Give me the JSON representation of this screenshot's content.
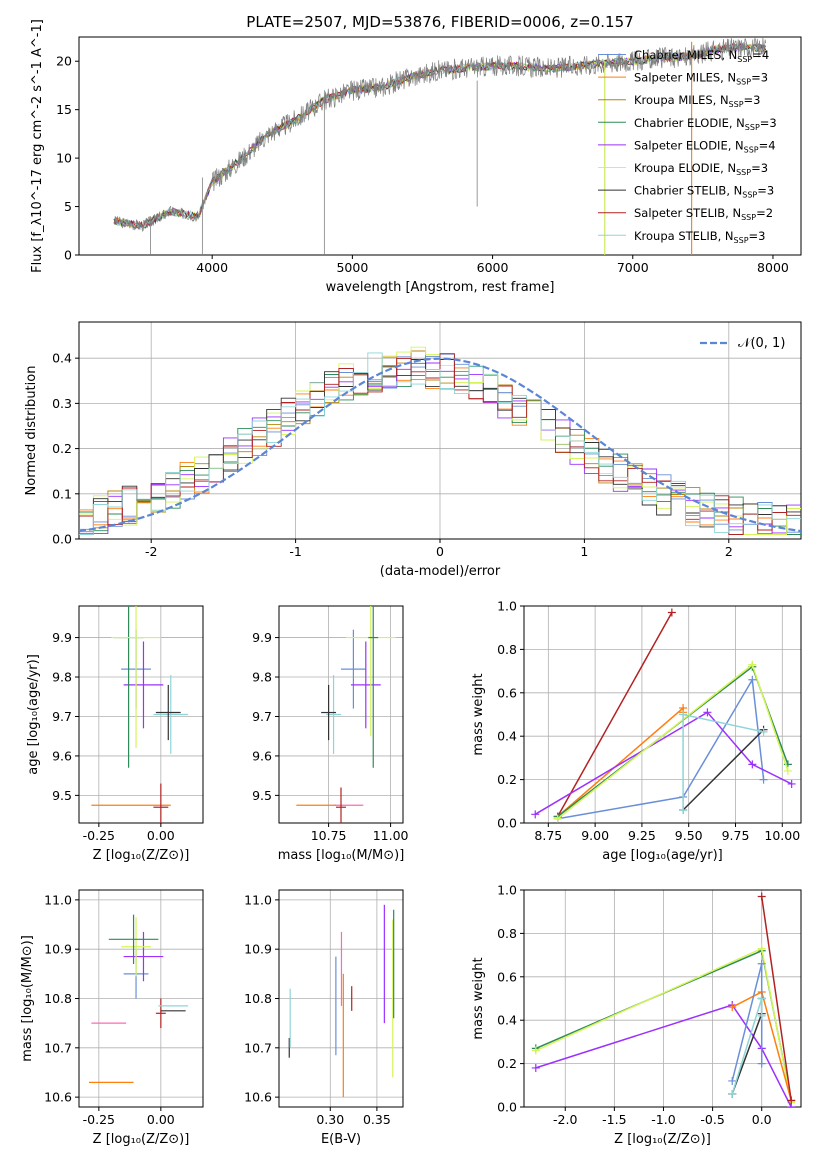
{
  "series_colors": {
    "Chabrier MILES": "#6a8fd8",
    "Salpeter MILES": "#ff7f0e",
    "Kroupa MILES": "#b8860b",
    "Chabrier ELODIE": "#2e8b57",
    "Salpeter ELODIE": "#9b30ff",
    "Kroupa ELODIE": "#d4f55a",
    "Chabrier STELIB": "#333333",
    "Salpeter STELIB": "#b22222",
    "Kroupa STELIB": "#8fd5d8",
    "pink": "#ff69b4",
    "gauss": "#5b86d6"
  },
  "chart_data": [
    {
      "id": "spectrum",
      "type": "line",
      "title": "PLATE=2507, MJD=53876, FIBERID=0006, z=0.157",
      "xlabel": "wavelength [Angstrom, rest frame]",
      "ylabel": "Flux [f_λ10^-17 erg cm^-2 s^-1 A^-1]",
      "xlim": [
        3050,
        8200
      ],
      "ylim": [
        0,
        22.5
      ],
      "xticks": [
        4000,
        5000,
        6000,
        7000,
        8000
      ],
      "yticks": [
        0,
        5,
        10,
        15,
        20
      ],
      "legend_position": "upper right",
      "legend": [
        {
          "name": "Chabrier MILES",
          "nssp": "4"
        },
        {
          "name": "Salpeter MILES",
          "nssp": "3"
        },
        {
          "name": "Kroupa MILES",
          "nssp": "3"
        },
        {
          "name": "Chabrier ELODIE",
          "nssp": "3"
        },
        {
          "name": "Salpeter ELODIE",
          "nssp": "4"
        },
        {
          "name": "Kroupa ELODIE",
          "nssp": "3"
        },
        {
          "name": "Chabrier STELIB",
          "nssp": "3"
        },
        {
          "name": "Salpeter STELIB",
          "nssp": "2"
        },
        {
          "name": "Kroupa STELIB",
          "nssp": "3"
        }
      ],
      "data_series": "observed",
      "x": [
        3300,
        3500,
        3700,
        3900,
        4000,
        4200,
        4400,
        4600,
        4800,
        5000,
        5200,
        5400,
        5600,
        5800,
        6000,
        6200,
        6400,
        6600,
        6800,
        7000,
        7200,
        7400,
        7600,
        7800,
        7950
      ],
      "y": [
        3.5,
        3.0,
        4.5,
        4.0,
        7.5,
        9.8,
        12.5,
        14.0,
        16.0,
        17.0,
        17.3,
        18.3,
        19.0,
        19.3,
        19.5,
        19.5,
        19.2,
        19.5,
        19.8,
        20.0,
        20.3,
        20.5,
        21.2,
        21.5,
        21.3
      ]
    },
    {
      "id": "residuals",
      "type": "histogram",
      "xlabel": "(data-model)/error",
      "ylabel": "Normed distribution",
      "xlim": [
        -2.5,
        2.5
      ],
      "ylim": [
        0,
        0.48
      ],
      "xticks": [
        -2,
        -1,
        0,
        1,
        2
      ],
      "yticks": [
        0.0,
        0.1,
        0.2,
        0.3,
        0.4
      ],
      "grid": true,
      "gaussian_label": "N(0,1)"
    },
    {
      "id": "age_vs_Z",
      "type": "errorbar",
      "xlabel": "Z [log10(Z/Z⊙)]",
      "ylabel": "age [log10(age/yr)]",
      "xlim": [
        -0.33,
        0.17
      ],
      "ylim": [
        9.43,
        9.98
      ],
      "xticks": [
        -0.25,
        0.0
      ],
      "yticks": [
        9.5,
        9.6,
        9.7,
        9.8,
        9.9
      ],
      "grid": true,
      "points": [
        {
          "s": "Salpeter MILES",
          "x": -0.12,
          "y": 9.475,
          "xe": 0.16,
          "ye": 0.0
        },
        {
          "s": "Salpeter STELIB",
          "x": 0.0,
          "y": 9.47,
          "xe": 0.03,
          "ye": 0.06
        },
        {
          "s": "Chabrier MILES",
          "x": -0.1,
          "y": 9.82,
          "xe": 0.06,
          "ye": 0.1
        },
        {
          "s": "Salpeter ELODIE",
          "x": -0.07,
          "y": 9.78,
          "xe": 0.08,
          "ye": 0.11
        },
        {
          "s": "Chabrier ELODIE",
          "x": -0.13,
          "y": 9.9,
          "xe": 0.06,
          "ye": 0.33
        },
        {
          "s": "Kroupa ELODIE",
          "x": -0.1,
          "y": 9.9,
          "xe": 0.1,
          "ye": 0.28
        },
        {
          "s": "Kroupa STELIB",
          "x": 0.04,
          "y": 9.705,
          "xe": 0.07,
          "ye": 0.1
        },
        {
          "s": "Chabrier STELIB",
          "x": 0.03,
          "y": 9.71,
          "xe": 0.05,
          "ye": 0.07
        }
      ]
    },
    {
      "id": "age_vs_mass",
      "type": "errorbar",
      "xlabel": "mass [log10(M/M⊙)]",
      "ylabel": "",
      "xlim": [
        10.55,
        11.05
      ],
      "ylim": [
        9.43,
        9.98
      ],
      "xticks": [
        10.75,
        11.0
      ],
      "yticks": [
        9.5,
        9.6,
        9.7,
        9.8,
        9.9
      ],
      "grid": true,
      "points": [
        {
          "s": "Salpeter MILES",
          "x": 10.7,
          "y": 9.475,
          "xe": 0.08,
          "ye": 0.0
        },
        {
          "s": "pink",
          "x": 10.83,
          "y": 9.475,
          "xe": 0.06,
          "ye": 0.0
        },
        {
          "s": "Salpeter STELIB",
          "x": 10.8,
          "y": 9.47,
          "xe": 0.02,
          "ye": 0.05
        },
        {
          "s": "Chabrier MILES",
          "x": 10.85,
          "y": 9.82,
          "xe": 0.05,
          "ye": 0.1
        },
        {
          "s": "Salpeter ELODIE",
          "x": 10.9,
          "y": 9.78,
          "xe": 0.06,
          "ye": 0.11
        },
        {
          "s": "Kroupa ELODIE",
          "x": 10.92,
          "y": 9.9,
          "xe": 0.1,
          "ye": 0.25
        },
        {
          "s": "Chabrier ELODIE",
          "x": 10.93,
          "y": 9.9,
          "xe": 0.02,
          "ye": 0.33
        },
        {
          "s": "Kroupa STELIB",
          "x": 10.77,
          "y": 9.705,
          "xe": 0.03,
          "ye": 0.1
        },
        {
          "s": "Chabrier STELIB",
          "x": 10.75,
          "y": 9.71,
          "xe": 0.03,
          "ye": 0.07
        }
      ]
    },
    {
      "id": "mass_weight_vs_age",
      "type": "line",
      "xlabel": "age [log10(age/yr)]",
      "ylabel": "mass weight",
      "xlim": [
        8.62,
        10.1
      ],
      "ylim": [
        0,
        1.0
      ],
      "xticks": [
        8.75,
        9.0,
        9.25,
        9.5,
        9.75,
        10.0
      ],
      "yticks": [
        0.0,
        0.2,
        0.4,
        0.6,
        0.8,
        1.0
      ],
      "grid": true,
      "series": [
        {
          "s": "Chabrier MILES",
          "x": [
            8.8,
            9.47,
            9.84,
            9.9
          ],
          "y": [
            0.02,
            0.12,
            0.66,
            0.2
          ]
        },
        {
          "s": "Salpeter MILES",
          "x": [
            8.8,
            9.47,
            9.47
          ],
          "y": [
            0.03,
            0.53,
            0.51
          ]
        },
        {
          "s": "Salpeter STELIB",
          "x": [
            8.8,
            9.41
          ],
          "y": [
            0.03,
            0.97
          ]
        },
        {
          "s": "Salpeter ELODIE",
          "x": [
            8.68,
            9.6,
            9.84,
            10.05
          ],
          "y": [
            0.04,
            0.51,
            0.27,
            0.18
          ]
        },
        {
          "s": "Chabrier ELODIE",
          "x": [
            8.8,
            9.84,
            10.03
          ],
          "y": [
            0.03,
            0.72,
            0.27
          ]
        },
        {
          "s": "Kroupa ELODIE",
          "x": [
            8.8,
            9.84,
            10.03
          ],
          "y": [
            0.02,
            0.73,
            0.24
          ]
        },
        {
          "s": "Chabrier STELIB",
          "x": [
            9.47,
            9.9
          ],
          "y": [
            0.06,
            0.43
          ]
        },
        {
          "s": "Kroupa STELIB",
          "x": [
            9.47,
            9.47,
            9.9
          ],
          "y": [
            0.06,
            0.5,
            0.42
          ]
        }
      ]
    },
    {
      "id": "mass_vs_Z",
      "type": "errorbar",
      "xlabel": "Z [log10(Z/Z⊙)]",
      "ylabel": "mass [log10(M/M⊙)]",
      "xlim": [
        -0.33,
        0.17
      ],
      "ylim": [
        10.58,
        11.02
      ],
      "xticks": [
        -0.25,
        0.0
      ],
      "yticks": [
        10.6,
        10.7,
        10.8,
        10.9,
        11.0
      ],
      "grid": true,
      "points": [
        {
          "s": "Salpeter MILES",
          "x": -0.2,
          "y": 10.63,
          "xe": 0.09,
          "ye": 0.0
        },
        {
          "s": "pink",
          "x": -0.21,
          "y": 10.75,
          "xe": 0.07,
          "ye": 0.0
        },
        {
          "s": "Salpeter STELIB",
          "x": 0.0,
          "y": 10.77,
          "xe": 0.02,
          "ye": 0.03
        },
        {
          "s": "Chabrier STELIB",
          "x": 0.05,
          "y": 10.775,
          "xe": 0.05,
          "ye": 0.0
        },
        {
          "s": "Kroupa STELIB",
          "x": 0.05,
          "y": 10.785,
          "xe": 0.06,
          "ye": 0.0
        },
        {
          "s": "Chabrier MILES",
          "x": -0.1,
          "y": 10.85,
          "xe": 0.05,
          "ye": 0.05
        },
        {
          "s": "Salpeter ELODIE",
          "x": -0.07,
          "y": 10.885,
          "xe": 0.08,
          "ye": 0.05
        },
        {
          "s": "Kroupa ELODIE",
          "x": -0.1,
          "y": 10.905,
          "xe": 0.06,
          "ye": 0.06
        },
        {
          "s": "Chabrier ELODIE",
          "x": -0.11,
          "y": 10.92,
          "xe": 0.1,
          "ye": 0.05
        }
      ]
    },
    {
      "id": "mass_vs_EBV",
      "type": "errorbar",
      "xlabel": "E(B-V)",
      "ylabel": "",
      "xlim": [
        0.245,
        0.378
      ],
      "ylim": [
        10.58,
        11.02
      ],
      "xticks": [
        0.3,
        0.35
      ],
      "yticks": [
        10.6,
        10.7,
        10.8,
        10.9,
        11.0
      ],
      "grid": true,
      "points": [
        {
          "s": "Chabrier STELIB",
          "x": 0.256,
          "y": 10.7,
          "ye": 0.02
        },
        {
          "s": "Kroupa STELIB",
          "x": 0.257,
          "y": 10.76,
          "ye": 0.06
        },
        {
          "s": "Chabrier MILES",
          "x": 0.306,
          "y": 10.785,
          "ye": 0.1
        },
        {
          "s": "pink",
          "x": 0.312,
          "y": 10.86,
          "ye": 0.075
        },
        {
          "s": "Salpeter MILES",
          "x": 0.314,
          "y": 10.725,
          "ye": 0.125
        },
        {
          "s": "Salpeter STELIB",
          "x": 0.323,
          "y": 10.8,
          "ye": 0.025
        },
        {
          "s": "Salpeter ELODIE",
          "x": 0.358,
          "y": 10.87,
          "ye": 0.12
        },
        {
          "s": "Kroupa ELODIE",
          "x": 0.367,
          "y": 10.8,
          "ye": 0.16
        },
        {
          "s": "Chabrier ELODIE",
          "x": 0.368,
          "y": 10.87,
          "ye": 0.11
        }
      ]
    },
    {
      "id": "mass_weight_vs_Z",
      "type": "line",
      "xlabel": "Z [log10(Z/Z⊙)]",
      "ylabel": "mass weight",
      "xlim": [
        -2.42,
        0.4
      ],
      "ylim": [
        0,
        1.0
      ],
      "xticks": [
        -2.0,
        -1.5,
        -1.0,
        -0.5,
        0.0
      ],
      "yticks": [
        0.0,
        0.2,
        0.4,
        0.6,
        0.8,
        1.0
      ],
      "grid": true,
      "series": [
        {
          "s": "Chabrier ELODIE",
          "x": [
            -2.3,
            0.0,
            0.3
          ],
          "y": [
            0.27,
            0.72,
            0.03
          ]
        },
        {
          "s": "Kroupa ELODIE",
          "x": [
            -2.3,
            0.0,
            0.3
          ],
          "y": [
            0.26,
            0.73,
            0.02
          ]
        },
        {
          "s": "Salpeter ELODIE",
          "x": [
            -2.3,
            -0.3,
            0.0,
            0.3
          ],
          "y": [
            0.18,
            0.47,
            0.27,
            0.0
          ]
        },
        {
          "s": "Salpeter MILES",
          "x": [
            -0.3,
            0.0,
            0.3
          ],
          "y": [
            0.46,
            0.53,
            0.03
          ]
        },
        {
          "s": "Salpeter STELIB",
          "x": [
            0.0,
            0.3
          ],
          "y": [
            0.97,
            0.03
          ]
        },
        {
          "s": "Chabrier MILES",
          "x": [
            -0.3,
            0.0,
            0.0
          ],
          "y": [
            0.12,
            0.66,
            0.2
          ]
        },
        {
          "s": "Chabrier STELIB",
          "x": [
            -0.3,
            0.0,
            0.0
          ],
          "y": [
            0.06,
            0.43,
            0.5
          ]
        },
        {
          "s": "Kroupa STELIB",
          "x": [
            -0.3,
            0.0,
            0.0
          ],
          "y": [
            0.06,
            0.5,
            0.42
          ]
        }
      ]
    }
  ]
}
